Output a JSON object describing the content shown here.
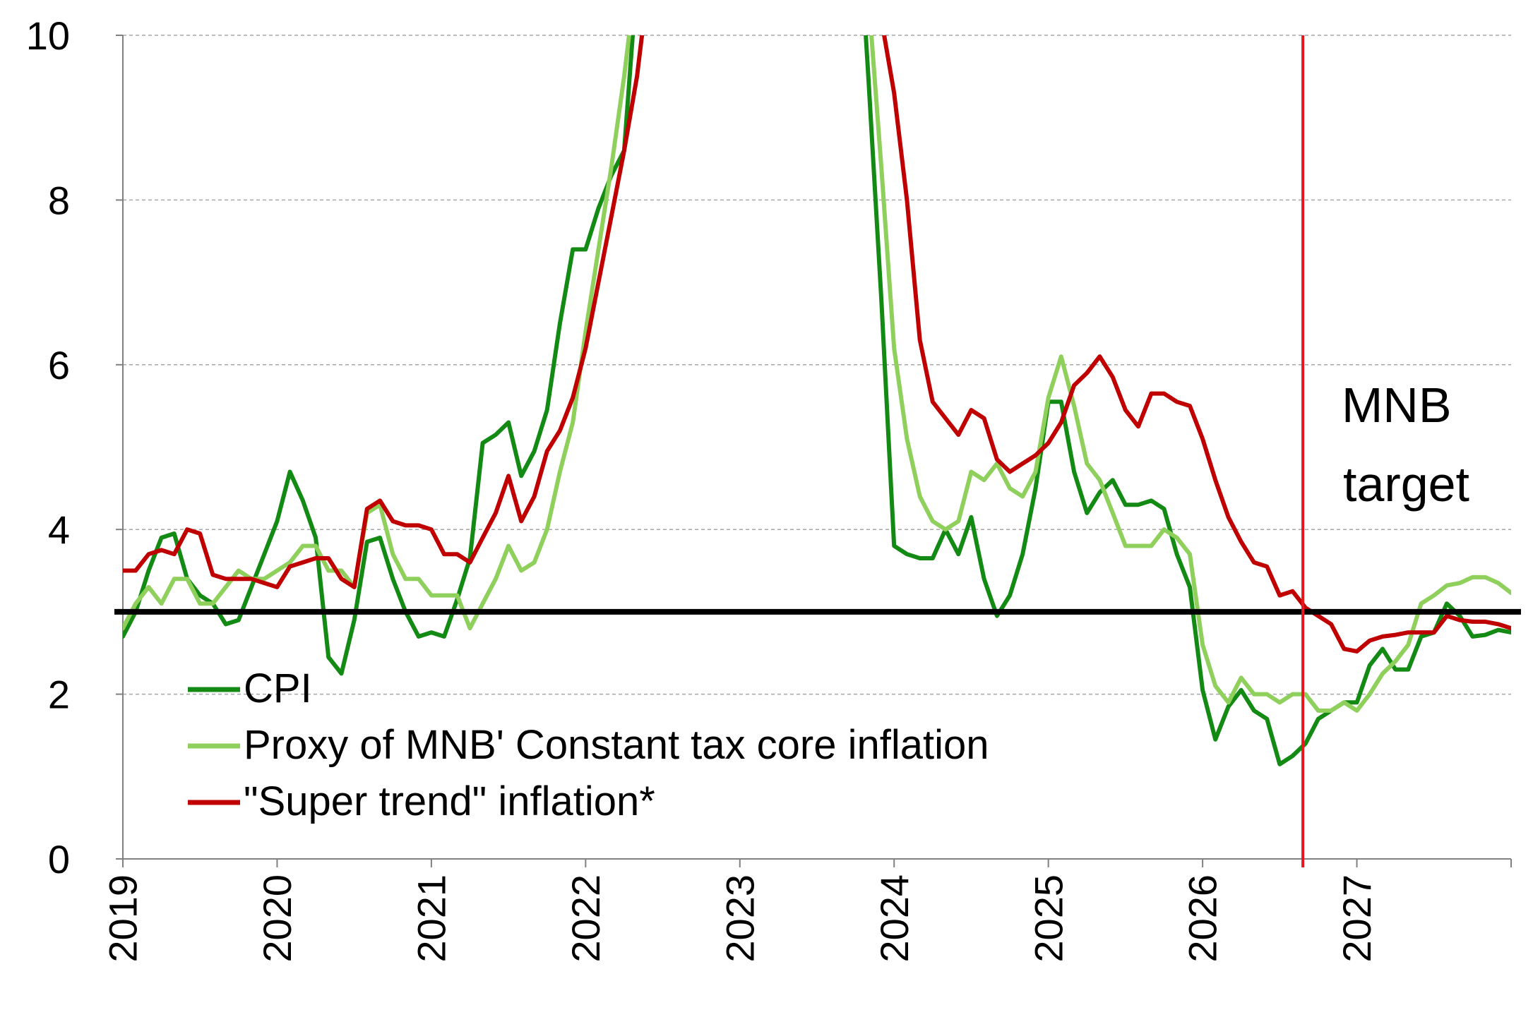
{
  "chart_data": {
    "type": "line",
    "title": "",
    "xlabel": "",
    "ylabel": "",
    "xlim": [
      2019,
      2028
    ],
    "ylim": [
      0,
      10
    ],
    "y_ticks": [
      0,
      2,
      4,
      6,
      8,
      10
    ],
    "x_ticks": [
      "2019",
      "2020",
      "2021",
      "2022",
      "2023",
      "2024",
      "2025",
      "2026",
      "2027"
    ],
    "grid": "horizontal dashed",
    "legend_position": "bottom-left",
    "target": {
      "value": 3,
      "label_line1": "MNB",
      "label_line2": "target",
      "color": "#000000"
    },
    "forecast_start": 2026.65,
    "forecast_line_color": "#e8161d",
    "series": [
      {
        "name": "CPI",
        "color": "#138a13",
        "points": [
          [
            2019.0,
            2.7
          ],
          [
            2019.083,
            3.0
          ],
          [
            2019.167,
            3.5
          ],
          [
            2019.25,
            3.9
          ],
          [
            2019.333,
            3.95
          ],
          [
            2019.417,
            3.4
          ],
          [
            2019.5,
            3.2
          ],
          [
            2019.583,
            3.1
          ],
          [
            2019.667,
            2.85
          ],
          [
            2019.75,
            2.9
          ],
          [
            2019.833,
            3.3
          ],
          [
            2019.917,
            3.7
          ],
          [
            2020.0,
            4.1
          ],
          [
            2020.083,
            4.7
          ],
          [
            2020.167,
            4.35
          ],
          [
            2020.25,
            3.9
          ],
          [
            2020.333,
            2.45
          ],
          [
            2020.417,
            2.25
          ],
          [
            2020.5,
            2.9
          ],
          [
            2020.583,
            3.85
          ],
          [
            2020.667,
            3.9
          ],
          [
            2020.75,
            3.4
          ],
          [
            2020.833,
            3.0
          ],
          [
            2020.917,
            2.7
          ],
          [
            2021.0,
            2.75
          ],
          [
            2021.083,
            2.7
          ],
          [
            2021.167,
            3.15
          ],
          [
            2021.25,
            3.65
          ],
          [
            2021.333,
            5.05
          ],
          [
            2021.417,
            5.15
          ],
          [
            2021.5,
            5.3
          ],
          [
            2021.583,
            4.65
          ],
          [
            2021.667,
            4.95
          ],
          [
            2021.75,
            5.45
          ],
          [
            2021.833,
            6.5
          ],
          [
            2021.917,
            7.4
          ],
          [
            2022.0,
            7.4
          ],
          [
            2022.083,
            7.9
          ],
          [
            2022.167,
            8.3
          ],
          [
            2022.25,
            8.6
          ],
          [
            2022.333,
            10.7
          ],
          [
            2023.75,
            12.0
          ],
          [
            2023.833,
            9.5
          ],
          [
            2023.917,
            6.8
          ],
          [
            2024.0,
            3.8
          ],
          [
            2024.083,
            3.7
          ],
          [
            2024.167,
            3.65
          ],
          [
            2024.25,
            3.65
          ],
          [
            2024.333,
            4.0
          ],
          [
            2024.417,
            3.7
          ],
          [
            2024.5,
            4.15
          ],
          [
            2024.583,
            3.4
          ],
          [
            2024.667,
            2.95
          ],
          [
            2024.75,
            3.2
          ],
          [
            2024.833,
            3.7
          ],
          [
            2024.917,
            4.5
          ],
          [
            2025.0,
            5.55
          ],
          [
            2025.083,
            5.55
          ],
          [
            2025.167,
            4.7
          ],
          [
            2025.25,
            4.2
          ],
          [
            2025.333,
            4.45
          ],
          [
            2025.417,
            4.6
          ],
          [
            2025.5,
            4.3
          ],
          [
            2025.583,
            4.3
          ],
          [
            2025.667,
            4.35
          ],
          [
            2025.75,
            4.25
          ],
          [
            2025.833,
            3.7
          ],
          [
            2025.917,
            3.3
          ],
          [
            2026.0,
            2.05
          ],
          [
            2026.083,
            1.45
          ],
          [
            2026.167,
            1.85
          ],
          [
            2026.25,
            2.05
          ],
          [
            2026.333,
            1.8
          ],
          [
            2026.417,
            1.7
          ],
          [
            2026.5,
            1.15
          ],
          [
            2026.583,
            1.25
          ],
          [
            2026.667,
            1.4
          ],
          [
            2026.75,
            1.7
          ],
          [
            2026.833,
            1.8
          ],
          [
            2026.917,
            1.9
          ],
          [
            2027.0,
            1.9
          ],
          [
            2027.083,
            2.35
          ],
          [
            2027.167,
            2.55
          ],
          [
            2027.25,
            2.3
          ],
          [
            2027.333,
            2.3
          ],
          [
            2027.417,
            2.7
          ],
          [
            2027.5,
            2.75
          ],
          [
            2027.583,
            3.1
          ],
          [
            2027.667,
            2.95
          ],
          [
            2027.75,
            2.7
          ],
          [
            2027.833,
            2.72
          ],
          [
            2027.917,
            2.78
          ],
          [
            2028.0,
            2.75
          ]
        ]
      },
      {
        "name": "Proxy of MNB' Constant tax core inflation",
        "color": "#8fd05c",
        "points": [
          [
            2019.0,
            2.8
          ],
          [
            2019.083,
            3.1
          ],
          [
            2019.167,
            3.3
          ],
          [
            2019.25,
            3.1
          ],
          [
            2019.333,
            3.4
          ],
          [
            2019.417,
            3.4
          ],
          [
            2019.5,
            3.1
          ],
          [
            2019.583,
            3.1
          ],
          [
            2019.667,
            3.3
          ],
          [
            2019.75,
            3.5
          ],
          [
            2019.833,
            3.4
          ],
          [
            2019.917,
            3.4
          ],
          [
            2020.0,
            3.5
          ],
          [
            2020.083,
            3.6
          ],
          [
            2020.167,
            3.8
          ],
          [
            2020.25,
            3.8
          ],
          [
            2020.333,
            3.5
          ],
          [
            2020.417,
            3.5
          ],
          [
            2020.5,
            3.3
          ],
          [
            2020.583,
            4.2
          ],
          [
            2020.667,
            4.3
          ],
          [
            2020.75,
            3.7
          ],
          [
            2020.833,
            3.4
          ],
          [
            2020.917,
            3.4
          ],
          [
            2021.0,
            3.2
          ],
          [
            2021.083,
            3.2
          ],
          [
            2021.167,
            3.2
          ],
          [
            2021.25,
            2.8
          ],
          [
            2021.333,
            3.1
          ],
          [
            2021.417,
            3.4
          ],
          [
            2021.5,
            3.8
          ],
          [
            2021.583,
            3.5
          ],
          [
            2021.667,
            3.6
          ],
          [
            2021.75,
            4.0
          ],
          [
            2021.833,
            4.7
          ],
          [
            2021.917,
            5.3
          ],
          [
            2022.0,
            6.4
          ],
          [
            2022.083,
            7.4
          ],
          [
            2022.167,
            8.4
          ],
          [
            2022.25,
            9.5
          ],
          [
            2022.333,
            10.8
          ],
          [
            2023.75,
            12.0
          ],
          [
            2023.833,
            10.5
          ],
          [
            2023.917,
            8.4
          ],
          [
            2024.0,
            6.2
          ],
          [
            2024.083,
            5.1
          ],
          [
            2024.167,
            4.4
          ],
          [
            2024.25,
            4.1
          ],
          [
            2024.333,
            4.0
          ],
          [
            2024.417,
            4.1
          ],
          [
            2024.5,
            4.7
          ],
          [
            2024.583,
            4.6
          ],
          [
            2024.667,
            4.8
          ],
          [
            2024.75,
            4.5
          ],
          [
            2024.833,
            4.4
          ],
          [
            2024.917,
            4.7
          ],
          [
            2025.0,
            5.6
          ],
          [
            2025.083,
            6.1
          ],
          [
            2025.167,
            5.5
          ],
          [
            2025.25,
            4.8
          ],
          [
            2025.333,
            4.6
          ],
          [
            2025.417,
            4.2
          ],
          [
            2025.5,
            3.8
          ],
          [
            2025.583,
            3.8
          ],
          [
            2025.667,
            3.8
          ],
          [
            2025.75,
            4.0
          ],
          [
            2025.833,
            3.9
          ],
          [
            2025.917,
            3.7
          ],
          [
            2026.0,
            2.6
          ],
          [
            2026.083,
            2.1
          ],
          [
            2026.167,
            1.9
          ],
          [
            2026.25,
            2.2
          ],
          [
            2026.333,
            2.0
          ],
          [
            2026.417,
            2.0
          ],
          [
            2026.5,
            1.9
          ],
          [
            2026.583,
            2.0
          ],
          [
            2026.667,
            2.0
          ],
          [
            2026.75,
            1.8
          ],
          [
            2026.833,
            1.8
          ],
          [
            2026.917,
            1.9
          ],
          [
            2027.0,
            1.8
          ],
          [
            2027.083,
            2.0
          ],
          [
            2027.167,
            2.25
          ],
          [
            2027.25,
            2.4
          ],
          [
            2027.333,
            2.6
          ],
          [
            2027.417,
            3.1
          ],
          [
            2027.5,
            3.2
          ],
          [
            2027.583,
            3.32
          ],
          [
            2027.667,
            3.35
          ],
          [
            2027.75,
            3.42
          ],
          [
            2027.833,
            3.42
          ],
          [
            2027.917,
            3.35
          ],
          [
            2028.0,
            3.23
          ]
        ]
      },
      {
        "name": "\"Super trend\" inflation*",
        "color": "#c00000",
        "points": [
          [
            2019.0,
            3.5
          ],
          [
            2019.083,
            3.5
          ],
          [
            2019.167,
            3.7
          ],
          [
            2019.25,
            3.75
          ],
          [
            2019.333,
            3.7
          ],
          [
            2019.417,
            4.0
          ],
          [
            2019.5,
            3.95
          ],
          [
            2019.583,
            3.45
          ],
          [
            2019.667,
            3.4
          ],
          [
            2019.75,
            3.4
          ],
          [
            2019.833,
            3.4
          ],
          [
            2019.917,
            3.35
          ],
          [
            2020.0,
            3.3
          ],
          [
            2020.083,
            3.55
          ],
          [
            2020.167,
            3.6
          ],
          [
            2020.25,
            3.65
          ],
          [
            2020.333,
            3.65
          ],
          [
            2020.417,
            3.4
          ],
          [
            2020.5,
            3.3
          ],
          [
            2020.583,
            4.25
          ],
          [
            2020.667,
            4.35
          ],
          [
            2020.75,
            4.1
          ],
          [
            2020.833,
            4.05
          ],
          [
            2020.917,
            4.05
          ],
          [
            2021.0,
            4.0
          ],
          [
            2021.083,
            3.7
          ],
          [
            2021.167,
            3.7
          ],
          [
            2021.25,
            3.6
          ],
          [
            2021.333,
            3.9
          ],
          [
            2021.417,
            4.2
          ],
          [
            2021.5,
            4.65
          ],
          [
            2021.583,
            4.1
          ],
          [
            2021.667,
            4.4
          ],
          [
            2021.75,
            4.95
          ],
          [
            2021.833,
            5.2
          ],
          [
            2021.917,
            5.6
          ],
          [
            2022.0,
            6.2
          ],
          [
            2022.083,
            7.0
          ],
          [
            2022.167,
            7.8
          ],
          [
            2022.25,
            8.6
          ],
          [
            2022.333,
            9.5
          ],
          [
            2022.417,
            10.8
          ],
          [
            2023.75,
            12.5
          ],
          [
            2023.833,
            11.8
          ],
          [
            2023.917,
            10.2
          ],
          [
            2024.0,
            9.3
          ],
          [
            2024.083,
            8.0
          ],
          [
            2024.167,
            6.3
          ],
          [
            2024.25,
            5.55
          ],
          [
            2024.333,
            5.35
          ],
          [
            2024.417,
            5.15
          ],
          [
            2024.5,
            5.45
          ],
          [
            2024.583,
            5.35
          ],
          [
            2024.667,
            4.85
          ],
          [
            2024.75,
            4.7
          ],
          [
            2024.833,
            4.8
          ],
          [
            2024.917,
            4.9
          ],
          [
            2025.0,
            5.05
          ],
          [
            2025.083,
            5.3
          ],
          [
            2025.167,
            5.75
          ],
          [
            2025.25,
            5.9
          ],
          [
            2025.333,
            6.1
          ],
          [
            2025.417,
            5.85
          ],
          [
            2025.5,
            5.45
          ],
          [
            2025.583,
            5.25
          ],
          [
            2025.667,
            5.65
          ],
          [
            2025.75,
            5.65
          ],
          [
            2025.833,
            5.55
          ],
          [
            2025.917,
            5.5
          ],
          [
            2026.0,
            5.1
          ],
          [
            2026.083,
            4.6
          ],
          [
            2026.167,
            4.15
          ],
          [
            2026.25,
            3.85
          ],
          [
            2026.333,
            3.6
          ],
          [
            2026.417,
            3.55
          ],
          [
            2026.5,
            3.2
          ],
          [
            2026.583,
            3.25
          ],
          [
            2026.667,
            3.05
          ],
          [
            2026.75,
            2.95
          ],
          [
            2026.833,
            2.85
          ],
          [
            2026.917,
            2.55
          ],
          [
            2027.0,
            2.52
          ],
          [
            2027.083,
            2.65
          ],
          [
            2027.167,
            2.7
          ],
          [
            2027.25,
            2.72
          ],
          [
            2027.333,
            2.75
          ],
          [
            2027.417,
            2.75
          ],
          [
            2027.5,
            2.75
          ],
          [
            2027.583,
            2.95
          ],
          [
            2027.667,
            2.9
          ],
          [
            2027.75,
            2.88
          ],
          [
            2027.833,
            2.88
          ],
          [
            2027.917,
            2.85
          ],
          [
            2028.0,
            2.8
          ]
        ]
      }
    ]
  }
}
